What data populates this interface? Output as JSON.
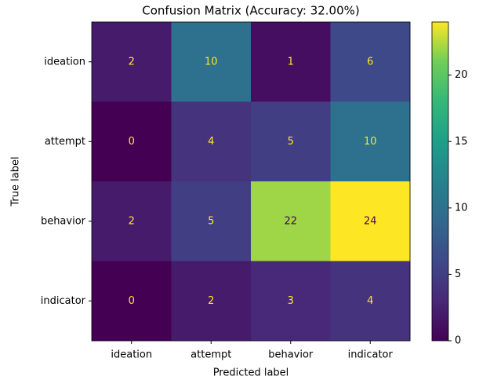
{
  "chart_data": {
    "type": "heatmap",
    "title": "Confusion Matrix (Accuracy: 32.00%)",
    "xlabel": "Predicted label",
    "ylabel": "True label",
    "x_categories": [
      "ideation",
      "attempt",
      "behavior",
      "indicator"
    ],
    "y_categories": [
      "ideation",
      "attempt",
      "behavior",
      "indicator"
    ],
    "values": [
      [
        2,
        10,
        1,
        6
      ],
      [
        0,
        4,
        5,
        10
      ],
      [
        2,
        5,
        22,
        24
      ],
      [
        0,
        2,
        3,
        4
      ]
    ],
    "colormap": "viridis",
    "clim": [
      0,
      24
    ],
    "cticks": [
      0,
      5,
      10,
      15,
      20
    ]
  }
}
